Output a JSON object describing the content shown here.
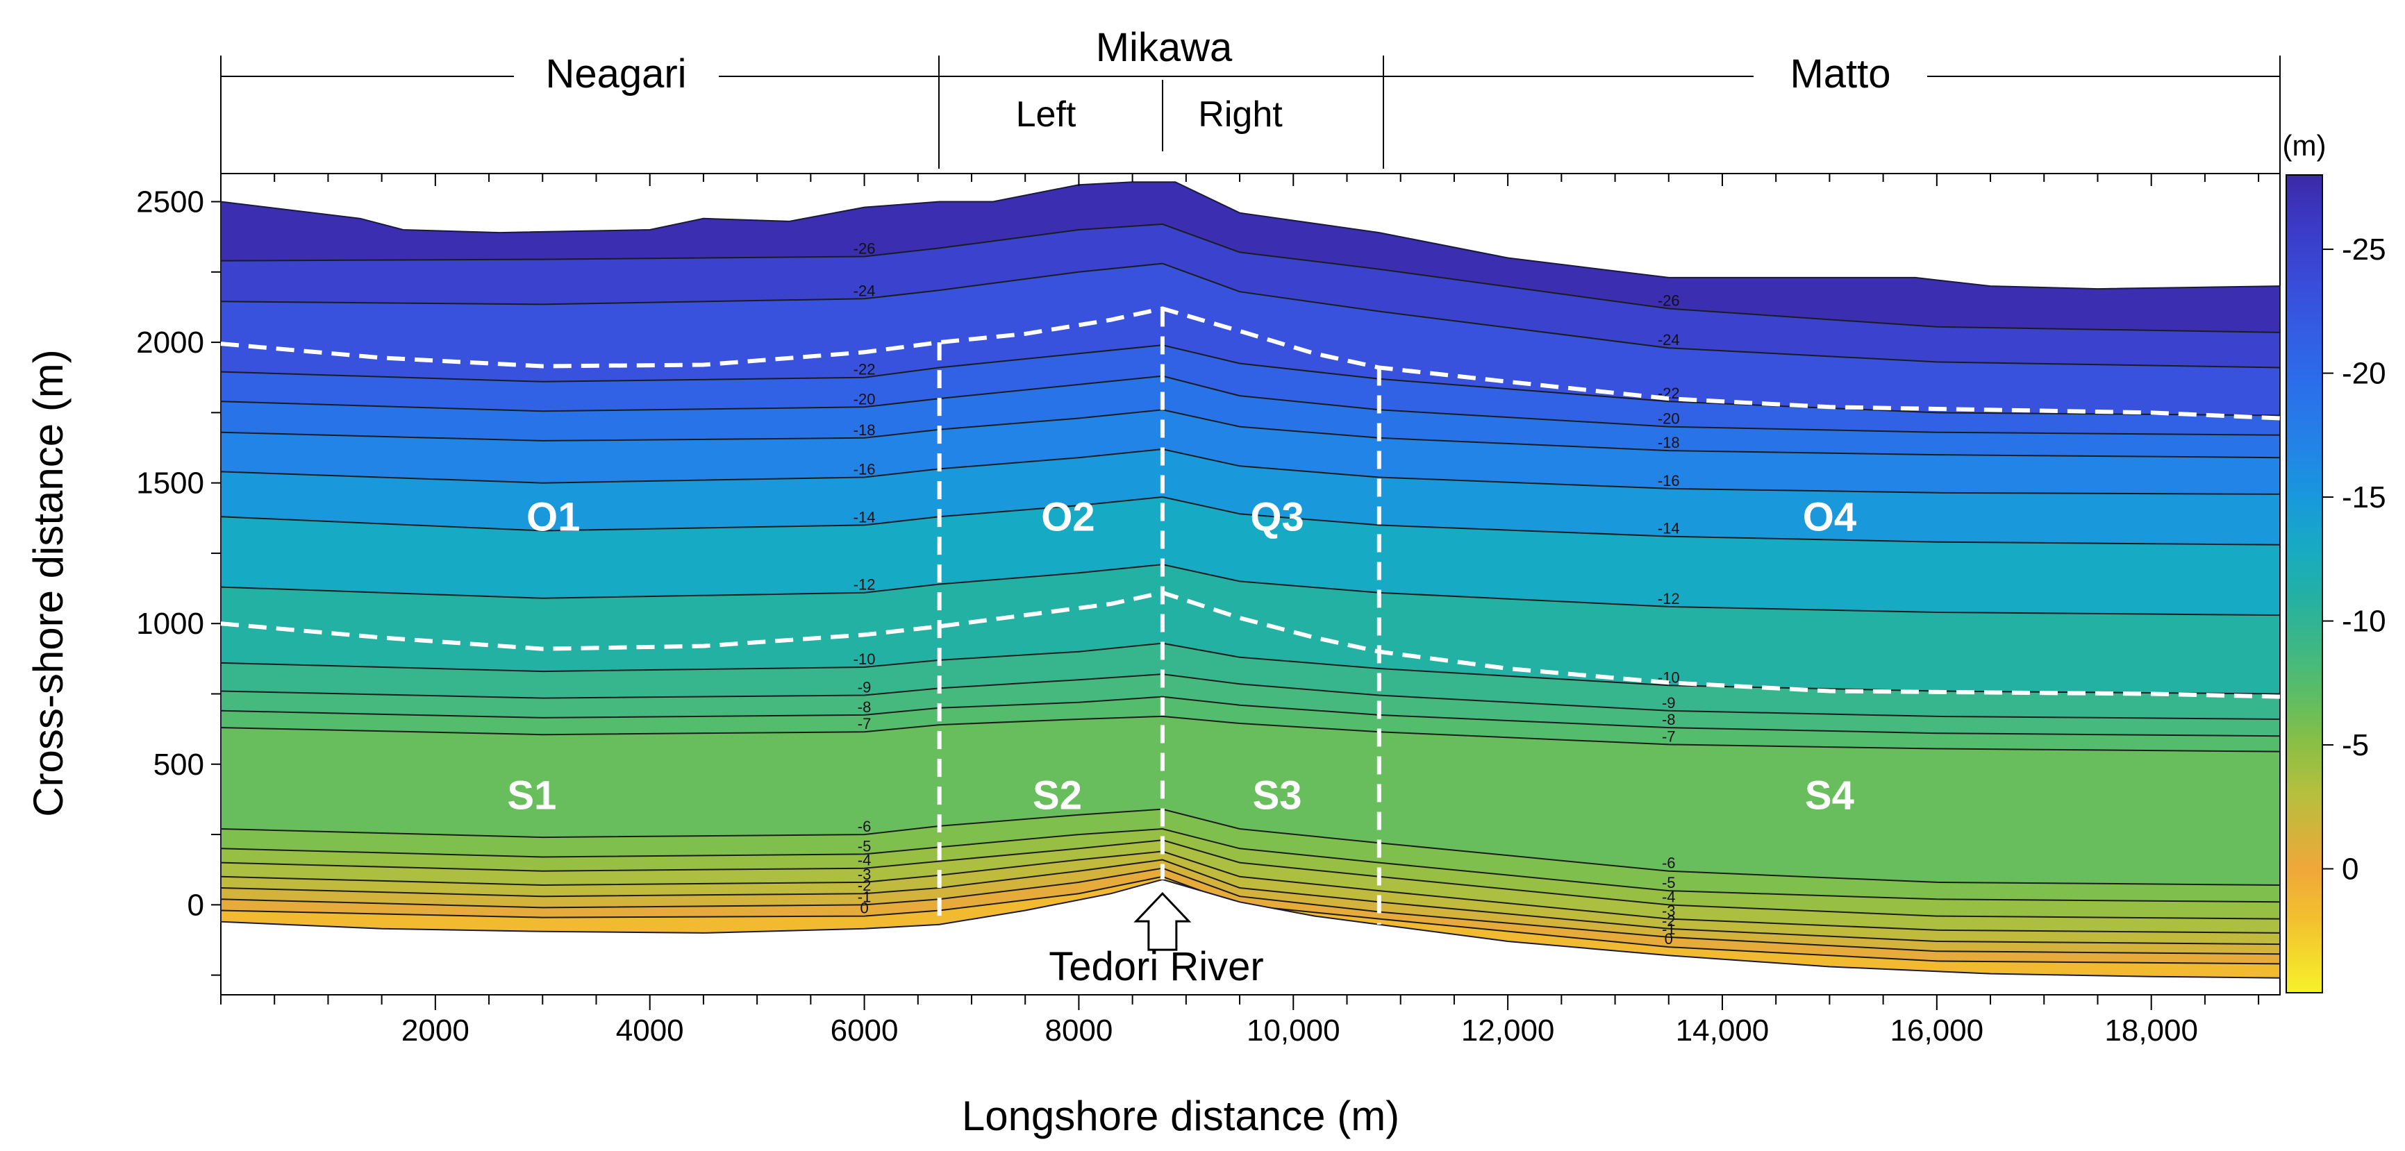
{
  "chart_data": {
    "type": "heatmap",
    "subtype": "filled bathymetric contour map",
    "xlabel": "Longshore distance (m)",
    "ylabel": "Cross-shore distance (m)",
    "xlim": [
      0,
      19200
    ],
    "ylim": [
      -320,
      2600
    ],
    "x_ticks": [
      2000,
      4000,
      6000,
      8000,
      10000,
      12000,
      14000,
      16000,
      18000
    ],
    "x_tick_labels": [
      "2000",
      "4000",
      "6000",
      "8000",
      "10,000",
      "12,000",
      "14,000",
      "16,000",
      "18,000"
    ],
    "y_ticks": [
      0,
      500,
      1000,
      1500,
      2000,
      2500
    ],
    "y_tick_labels": [
      "0",
      "500",
      "1000",
      "1500",
      "2000",
      "2500"
    ],
    "colorbar": {
      "unit": "(m)",
      "range": [
        -28,
        5
      ],
      "ticks": [
        0,
        -5,
        -10,
        -15,
        -20,
        -25
      ],
      "tick_labels": [
        "0",
        "-5",
        "-10",
        "-15",
        "-20",
        "-25"
      ],
      "stops": [
        {
          "value": 5,
          "color": "#f7f12a"
        },
        {
          "value": 2,
          "color": "#f2c02e"
        },
        {
          "value": 0,
          "color": "#f0a73a"
        },
        {
          "value": -3,
          "color": "#b7bf3e"
        },
        {
          "value": -5,
          "color": "#8bbf45"
        },
        {
          "value": -7,
          "color": "#5cbd64"
        },
        {
          "value": -9,
          "color": "#3db786"
        },
        {
          "value": -11,
          "color": "#23b1a4"
        },
        {
          "value": -13,
          "color": "#17aac4"
        },
        {
          "value": -15,
          "color": "#1998db"
        },
        {
          "value": -17,
          "color": "#2284e6"
        },
        {
          "value": -20,
          "color": "#2d6aea"
        },
        {
          "value": -23,
          "color": "#3852dd"
        },
        {
          "value": -26,
          "color": "#3b3ac6"
        },
        {
          "value": -28,
          "color": "#3b2aa8"
        }
      ]
    },
    "zones": [
      {
        "name": "Neagari",
        "x_range": [
          0,
          6700
        ]
      },
      {
        "name": "Mikawa",
        "x_range": [
          6700,
          10800
        ],
        "sub": [
          {
            "name": "Left",
            "x_range": [
              6700,
              8780
            ]
          },
          {
            "name": "Right",
            "x_range": [
              8780,
              10800
            ]
          }
        ]
      },
      {
        "name": "Matto",
        "x_range": [
          10800,
          19200
        ]
      }
    ],
    "boundaries_x": [
      6700,
      8780,
      10800
    ],
    "region_labels": [
      {
        "label": "O1",
        "x": 3100,
        "y": 1380
      },
      {
        "label": "O2",
        "x": 7900,
        "y": 1380
      },
      {
        "label": "Q3",
        "x": 9850,
        "y": 1380
      },
      {
        "label": "O4",
        "x": 15000,
        "y": 1380
      },
      {
        "label": "S1",
        "x": 2900,
        "y": 390
      },
      {
        "label": "S2",
        "x": 7800,
        "y": 390
      },
      {
        "label": "S3",
        "x": 9850,
        "y": 390
      },
      {
        "label": "S4",
        "x": 15000,
        "y": 390
      }
    ],
    "annotation": "Tedori River",
    "series": [
      {
        "role": "offshore-boundary",
        "x": [
          0,
          1500,
          3000,
          4500,
          6000,
          6700,
          7500,
          8300,
          8780,
          9500,
          10200,
          10800,
          12000,
          13500,
          15000,
          16500,
          18000,
          19200
        ],
        "y": [
          1995,
          1945,
          1915,
          1920,
          1965,
          2000,
          2030,
          2080,
          2120,
          2040,
          1960,
          1910,
          1860,
          1800,
          1770,
          1760,
          1750,
          1730
        ]
      },
      {
        "role": "nearshore-boundary",
        "x": [
          0,
          1500,
          3000,
          4500,
          6000,
          6700,
          7500,
          8300,
          8780,
          9500,
          10200,
          10800,
          12000,
          13500,
          15000,
          16500,
          18000,
          19200
        ],
        "y": [
          1000,
          950,
          910,
          920,
          960,
          990,
          1030,
          1070,
          1110,
          1020,
          950,
          900,
          840,
          790,
          760,
          755,
          750,
          740
        ]
      },
      {
        "role": "offshore-edge",
        "x": [
          0,
          1300,
          1700,
          2600,
          4000,
          4500,
          5300,
          6000,
          6700,
          7200,
          8000,
          8500,
          8900,
          9500,
          10800,
          12000,
          13500,
          15000,
          15800,
          16500,
          17500,
          19200
        ],
        "y": [
          2500,
          2440,
          2400,
          2390,
          2400,
          2440,
          2430,
          2480,
          2500,
          2500,
          2560,
          2570,
          2570,
          2460,
          2390,
          2300,
          2230,
          2230,
          2230,
          2200,
          2190,
          2200
        ]
      },
      {
        "role": "shoreline",
        "x": [
          0,
          1500,
          3000,
          4500,
          6000,
          6700,
          7500,
          8300,
          8780,
          9500,
          10200,
          10800,
          12000,
          13500,
          15000,
          16500,
          18000,
          19200
        ],
        "y": [
          -60,
          -85,
          -95,
          -100,
          -85,
          -70,
          -20,
          40,
          90,
          10,
          -40,
          -70,
          -130,
          -180,
          -220,
          -245,
          -255,
          -260
        ]
      }
    ],
    "contours": [
      {
        "level": -26,
        "x": [
          0,
          3000,
          6000,
          6700,
          8000,
          8780,
          9500,
          10800,
          13500,
          16000,
          19200
        ],
        "y": [
          2290,
          2295,
          2305,
          2335,
          2400,
          2420,
          2320,
          2260,
          2120,
          2055,
          2035
        ]
      },
      {
        "level": -24,
        "x": [
          0,
          3000,
          6000,
          6700,
          8000,
          8780,
          9500,
          10800,
          13500,
          16000,
          19200
        ],
        "y": [
          2145,
          2135,
          2155,
          2185,
          2250,
          2280,
          2180,
          2110,
          1980,
          1930,
          1910
        ]
      },
      {
        "level": -22,
        "x": [
          0,
          3000,
          6000,
          6700,
          8000,
          8780,
          9500,
          10800,
          13500,
          16000,
          19200
        ],
        "y": [
          1895,
          1860,
          1875,
          1910,
          1960,
          1990,
          1925,
          1870,
          1790,
          1750,
          1740
        ]
      },
      {
        "level": -20,
        "x": [
          0,
          3000,
          6000,
          6700,
          8000,
          8780,
          9500,
          10800,
          13500,
          16000,
          19200
        ],
        "y": [
          1790,
          1755,
          1770,
          1800,
          1850,
          1880,
          1810,
          1760,
          1700,
          1680,
          1670
        ]
      },
      {
        "level": -18,
        "x": [
          0,
          3000,
          6000,
          6700,
          8000,
          8780,
          9500,
          10800,
          13500,
          16000,
          19200
        ],
        "y": [
          1680,
          1650,
          1660,
          1690,
          1730,
          1760,
          1700,
          1660,
          1615,
          1600,
          1590
        ]
      },
      {
        "level": -16,
        "x": [
          0,
          3000,
          6000,
          6700,
          8000,
          8780,
          9500,
          10800,
          13500,
          16000,
          19200
        ],
        "y": [
          1540,
          1500,
          1520,
          1550,
          1590,
          1620,
          1560,
          1520,
          1480,
          1465,
          1460
        ]
      },
      {
        "level": -14,
        "x": [
          0,
          3000,
          6000,
          6700,
          8000,
          8780,
          9500,
          10800,
          13500,
          16000,
          19200
        ],
        "y": [
          1380,
          1330,
          1350,
          1380,
          1420,
          1450,
          1390,
          1350,
          1310,
          1290,
          1280
        ]
      },
      {
        "level": -12,
        "x": [
          0,
          3000,
          6000,
          6700,
          8000,
          8780,
          9500,
          10800,
          13500,
          16000,
          19200
        ],
        "y": [
          1130,
          1090,
          1110,
          1140,
          1180,
          1210,
          1150,
          1110,
          1060,
          1040,
          1030
        ]
      },
      {
        "level": -10,
        "x": [
          0,
          3000,
          6000,
          6700,
          8000,
          8780,
          9500,
          10800,
          13500,
          16000,
          19200
        ],
        "y": [
          860,
          830,
          845,
          870,
          900,
          930,
          880,
          840,
          780,
          760,
          750
        ]
      },
      {
        "level": -9,
        "x": [
          0,
          3000,
          6000,
          6700,
          8000,
          8780,
          9500,
          10800,
          13500,
          16000,
          19200
        ],
        "y": [
          760,
          735,
          745,
          770,
          800,
          820,
          785,
          745,
          690,
          670,
          660
        ]
      },
      {
        "level": -8,
        "x": [
          0,
          3000,
          6000,
          6700,
          8000,
          8780,
          9500,
          10800,
          13500,
          16000,
          19200
        ],
        "y": [
          690,
          665,
          675,
          700,
          720,
          740,
          710,
          675,
          630,
          610,
          600
        ]
      },
      {
        "level": -7,
        "x": [
          0,
          3000,
          6000,
          6700,
          8000,
          8780,
          9500,
          10800,
          13500,
          16000,
          19200
        ],
        "y": [
          630,
          605,
          615,
          640,
          660,
          670,
          645,
          615,
          570,
          555,
          545
        ]
      },
      {
        "level": -6,
        "x": [
          0,
          3000,
          6000,
          6700,
          8000,
          8780,
          9500,
          10800,
          13500,
          16000,
          19200
        ],
        "y": [
          270,
          240,
          250,
          280,
          320,
          340,
          270,
          220,
          120,
          80,
          70
        ]
      },
      {
        "level": -5,
        "x": [
          0,
          3000,
          6000,
          6700,
          8000,
          8780,
          9500,
          10800,
          13500,
          16000,
          19200
        ],
        "y": [
          200,
          170,
          180,
          205,
          250,
          270,
          200,
          150,
          50,
          20,
          10
        ]
      },
      {
        "level": -4,
        "x": [
          0,
          3000,
          6000,
          6700,
          8000,
          8780,
          9500,
          10800,
          13500,
          16000,
          19200
        ],
        "y": [
          150,
          120,
          130,
          155,
          200,
          230,
          150,
          100,
          0,
          -40,
          -50
        ]
      },
      {
        "level": -3,
        "x": [
          0,
          3000,
          6000,
          6700,
          8000,
          8780,
          9500,
          10800,
          13500,
          16000,
          19200
        ],
        "y": [
          100,
          70,
          80,
          105,
          160,
          190,
          100,
          50,
          -50,
          -90,
          -100
        ]
      },
      {
        "level": -2,
        "x": [
          0,
          3000,
          6000,
          6700,
          8000,
          8780,
          9500,
          10800,
          13500,
          16000,
          19200
        ],
        "y": [
          60,
          30,
          40,
          60,
          120,
          160,
          60,
          10,
          -85,
          -130,
          -140
        ]
      },
      {
        "level": -1,
        "x": [
          0,
          3000,
          6000,
          6700,
          8000,
          8780,
          9500,
          10800,
          13500,
          16000,
          19200
        ],
        "y": [
          20,
          -10,
          0,
          20,
          80,
          130,
          30,
          -25,
          -115,
          -165,
          -175
        ]
      },
      {
        "level": 0,
        "x": [
          0,
          3000,
          6000,
          6700,
          8000,
          8780,
          9500,
          10800,
          13500,
          16000,
          19200
        ],
        "y": [
          -20,
          -45,
          -40,
          -20,
          40,
          100,
          0,
          -50,
          -150,
          -200,
          -210
        ]
      }
    ]
  },
  "figure": {
    "zones": {
      "neagari": "Neagari",
      "mikawa": "Mikawa",
      "mikawa_left": "Left",
      "mikawa_right": "Right",
      "matto": "Matto"
    },
    "river_label": "Tedori River"
  }
}
